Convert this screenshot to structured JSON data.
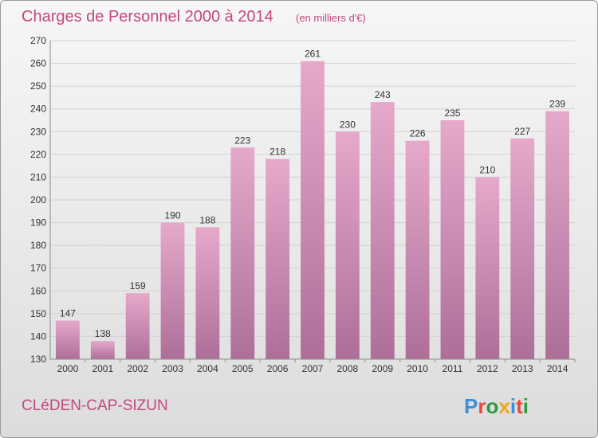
{
  "chart_data": {
    "type": "bar",
    "title": "Charges de Personnel 2000 à 2014",
    "subtitle": "(en milliers d'€)",
    "categories": [
      "2000",
      "2001",
      "2002",
      "2003",
      "2004",
      "2005",
      "2006",
      "2007",
      "2008",
      "2009",
      "2010",
      "2011",
      "2012",
      "2013",
      "2014"
    ],
    "values": [
      147,
      138,
      159,
      190,
      188,
      223,
      218,
      261,
      230,
      243,
      226,
      235,
      210,
      227,
      239
    ],
    "ylim": [
      130,
      270
    ],
    "yticks": [
      130,
      140,
      150,
      160,
      170,
      180,
      190,
      200,
      210,
      220,
      230,
      240,
      250,
      260,
      270
    ],
    "grid": true,
    "bar_color": "#d98ab5"
  },
  "footer": {
    "commune": "CLéDEN-CAP-SIZUN",
    "logo": "Proxiti"
  },
  "colors": {
    "accent": "#c2477f",
    "logo_letters": [
      "#3a8fd6",
      "#e8483a",
      "#2e9b3f",
      "#f2a51f",
      "#3a8fd6",
      "#e8483a",
      "#2e9b3f"
    ]
  }
}
